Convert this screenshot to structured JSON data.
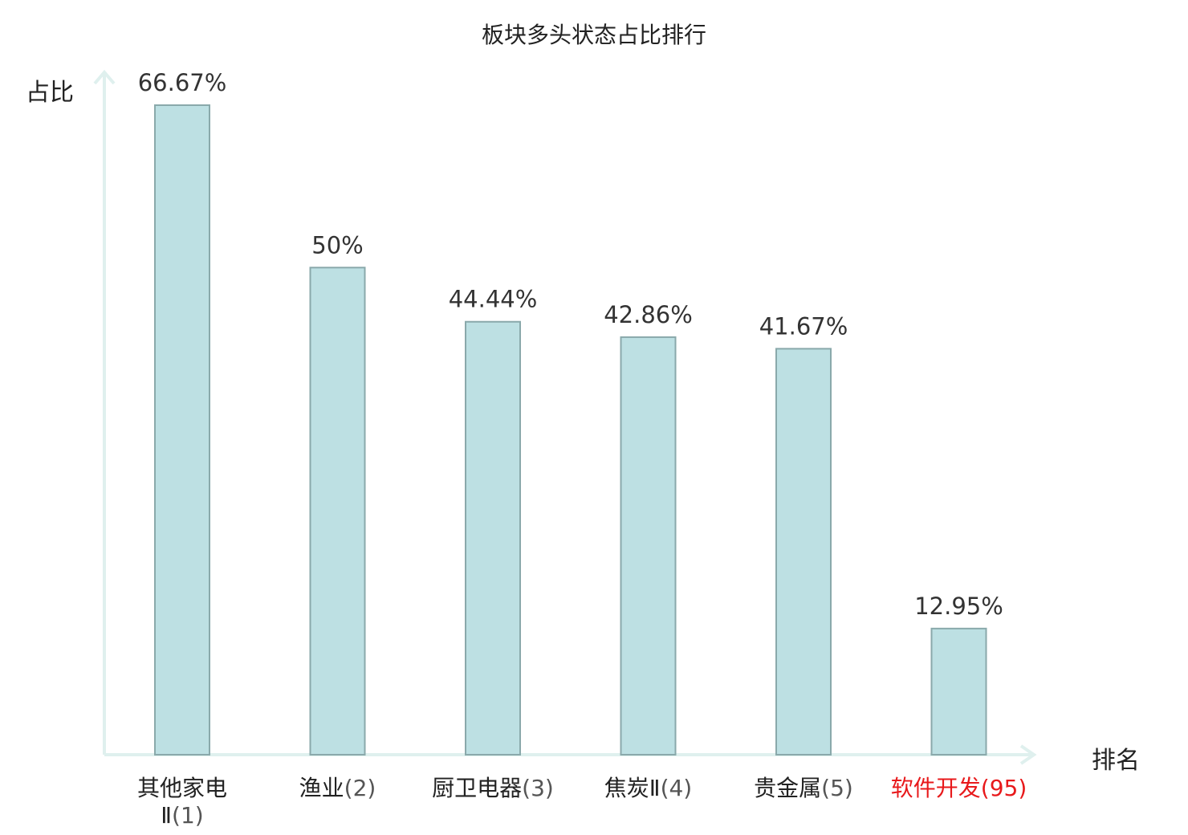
{
  "chart_data": {
    "type": "bar",
    "title": "板块多头状态占比排行",
    "xlabel": "排名",
    "ylabel": "占比",
    "ylim": [
      0,
      72
    ],
    "categories": [
      {
        "name": "其他家电Ⅱ",
        "rank": "(1)",
        "value": 66.67,
        "label": "66.67%",
        "highlight": false
      },
      {
        "name": "渔业",
        "rank": "(2)",
        "value": 50,
        "label": "50%",
        "highlight": false
      },
      {
        "name": "厨卫电器",
        "rank": "(3)",
        "value": 44.44,
        "label": "44.44%",
        "highlight": false
      },
      {
        "name": "焦炭Ⅱ",
        "rank": "(4)",
        "value": 42.86,
        "label": "42.86%",
        "highlight": false
      },
      {
        "name": "贵金属",
        "rank": "(5)",
        "value": 41.67,
        "label": "41.67%",
        "highlight": false
      },
      {
        "name": "软件开发",
        "rank": "(95)",
        "value": 12.95,
        "label": "12.95%",
        "highlight": true
      }
    ],
    "colors": {
      "bar_fill": "#bde0e3",
      "bar_stroke": "#8aa9ab",
      "axis": "#dff0ee",
      "highlight": "#e8191b"
    },
    "grid": false,
    "legend": "none"
  }
}
